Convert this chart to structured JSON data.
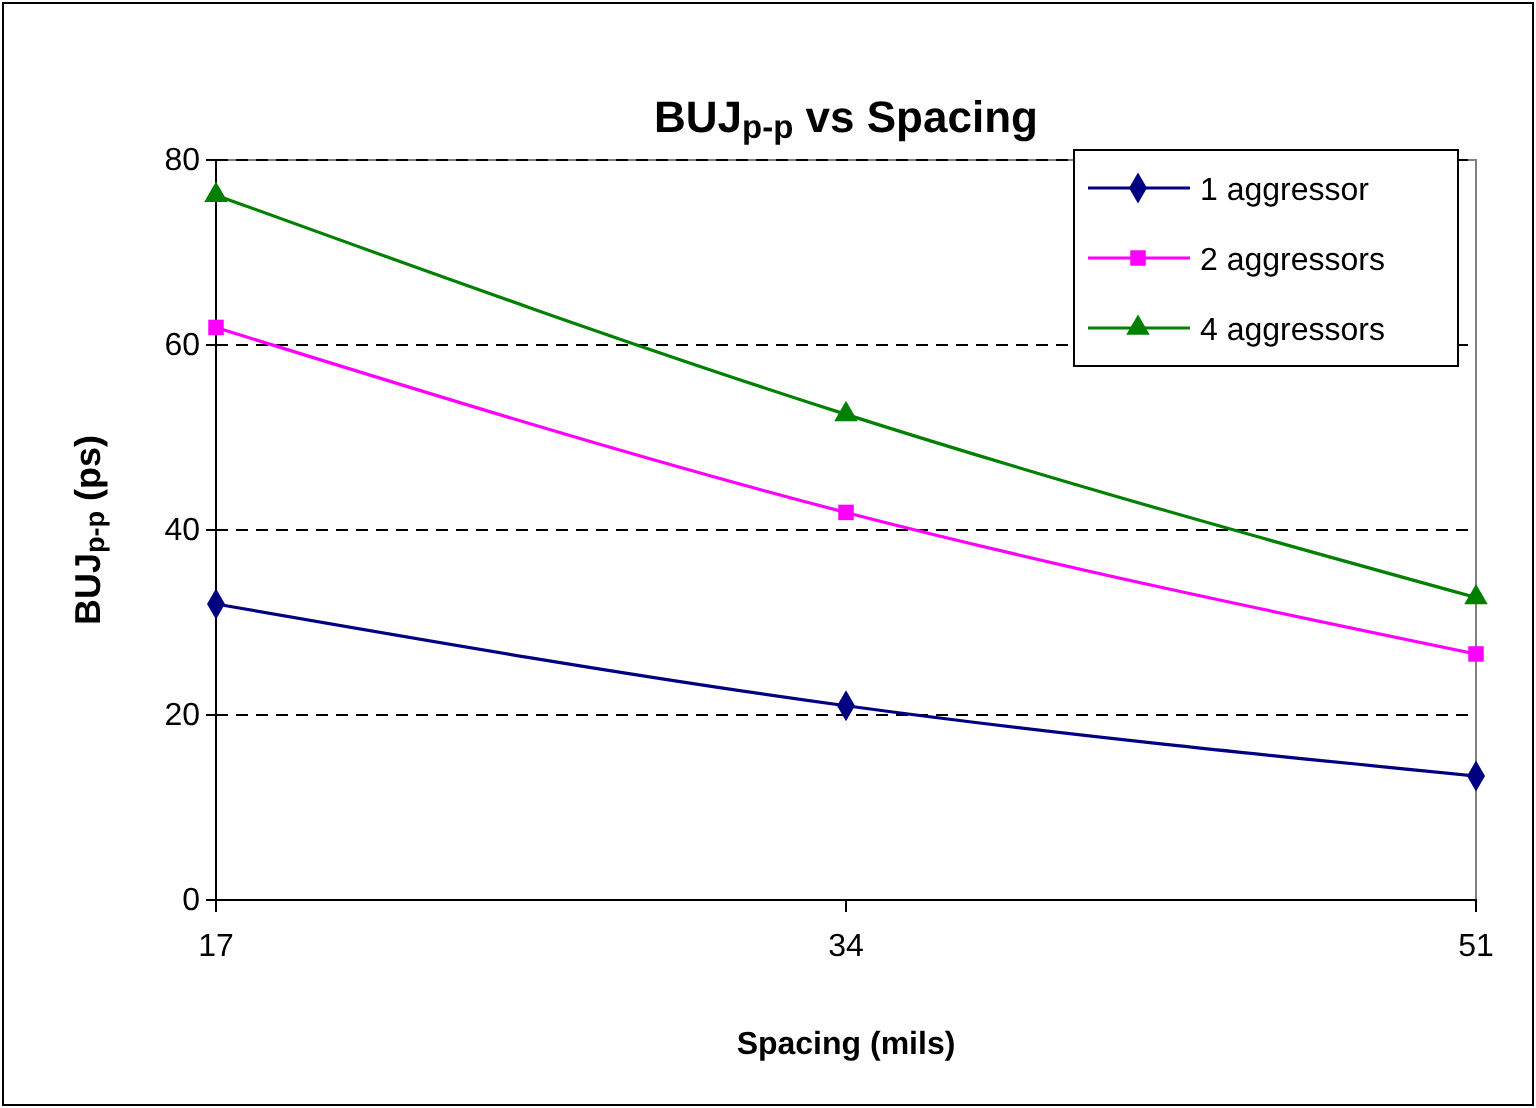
{
  "chart_data": {
    "type": "line",
    "title": "BUJ$_{p-p}$ vs Spacing",
    "xlabel": "Spacing (mils)",
    "ylabel": "BUJ$_{p-p}$ (ps)",
    "x": [
      17,
      34,
      51
    ],
    "xlim": [
      17,
      51
    ],
    "xticks": [
      17,
      34,
      51
    ],
    "ylim": [
      0,
      80
    ],
    "yticks": [
      0,
      20,
      40,
      60,
      80
    ],
    "grid": "y",
    "legend": "top right",
    "series": [
      {
        "name": "1 aggressor",
        "color": "#000080",
        "marker": "diamond",
        "values": [
          32,
          21,
          13.4
        ]
      },
      {
        "name": "2 aggressors",
        "color": "#ff00ff",
        "marker": "square",
        "values": [
          61.9,
          41.9,
          26.6
        ]
      },
      {
        "name": "4 aggressors",
        "color": "#008000",
        "marker": "triangle",
        "values": [
          76.2,
          52.5,
          32.7
        ]
      }
    ]
  }
}
